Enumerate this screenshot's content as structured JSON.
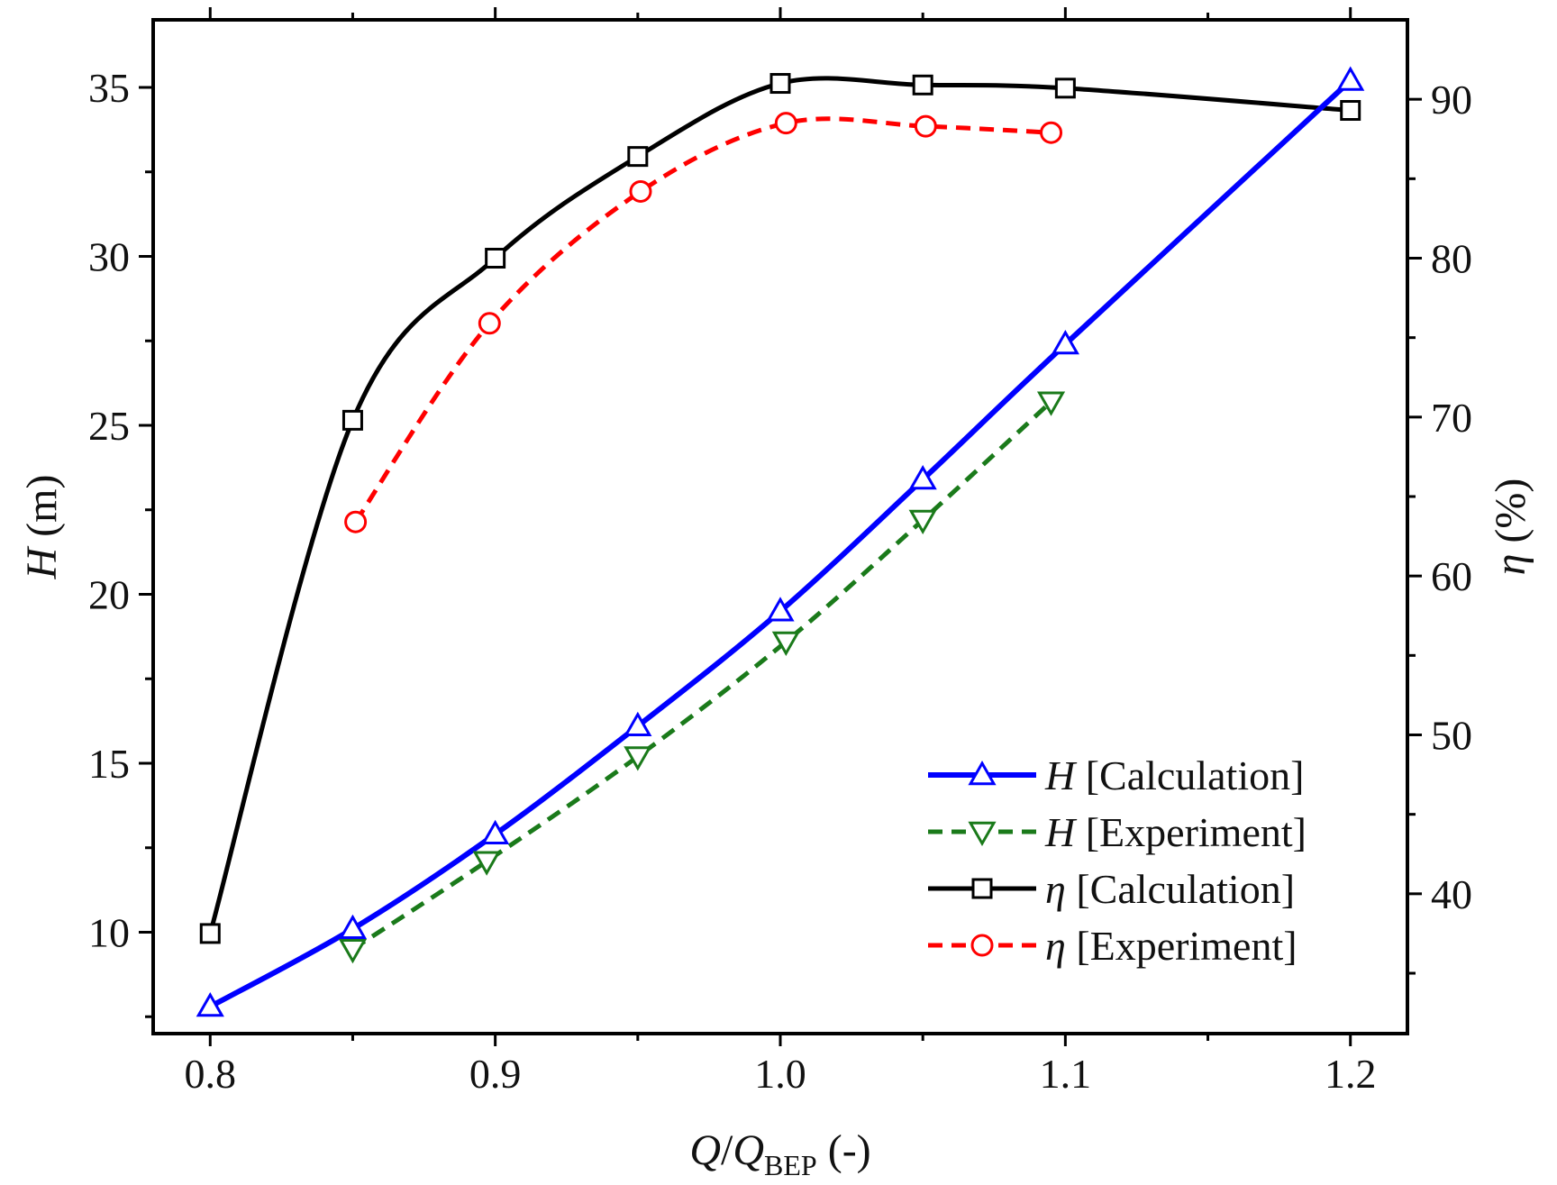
{
  "chart_data": {
    "type": "line",
    "xlabel": {
      "var": "Q",
      "sep": "/",
      "var2": "Q",
      "sub": "BEP",
      "unit": " (-)"
    },
    "ylabel_left": {
      "var": "H",
      "unit": " (m)"
    },
    "ylabel_right": {
      "var": "η",
      "unit": " (%)"
    },
    "xlim": [
      0.78,
      1.22
    ],
    "ylim_left": [
      7.0,
      37.0
    ],
    "ylim_right": [
      31.2,
      95.0
    ],
    "x_ticks": [
      0.8,
      0.9,
      1.0,
      1.1,
      1.2
    ],
    "x_tick_labels": [
      "0.8",
      "0.9",
      "1.0",
      "1.1",
      "1.2"
    ],
    "y_left_ticks": [
      10,
      15,
      20,
      25,
      30,
      35
    ],
    "y_left_tick_labels": [
      "10",
      "15",
      "20",
      "25",
      "30",
      "35"
    ],
    "y_right_ticks": [
      40,
      50,
      60,
      70,
      80,
      90
    ],
    "y_right_tick_labels": [
      "40",
      "50",
      "60",
      "70",
      "80",
      "90"
    ],
    "legend_position": "bottom-right",
    "series": [
      {
        "id": "h-calc",
        "name_var": "H",
        "name_text": " [Calculation]",
        "axis": "left",
        "color": "#0000ff",
        "dash": "none",
        "marker": "triangle-up",
        "x": [
          0.8,
          0.85,
          0.9,
          0.95,
          1.0,
          1.05,
          1.1,
          1.2
        ],
        "values": [
          7.8,
          10.1,
          12.9,
          16.1,
          19.5,
          23.4,
          27.4,
          35.2
        ]
      },
      {
        "id": "h-exp",
        "name_var": "H",
        "name_text": " [Experiment]",
        "axis": "left",
        "color": "#1a7a1a",
        "dash": "dashed",
        "marker": "triangle-down",
        "x": [
          0.85,
          0.897,
          0.95,
          1.002,
          1.05,
          1.095
        ],
        "values": [
          9.5,
          12.1,
          15.2,
          18.6,
          22.2,
          25.7
        ]
      },
      {
        "id": "eta-calc",
        "name_var": "η",
        "name_text": " [Calculation]",
        "axis": "right",
        "color": "#000000",
        "dash": "none",
        "marker": "square",
        "x": [
          0.8,
          0.85,
          0.9,
          0.95,
          1.0,
          1.05,
          1.1,
          1.2
        ],
        "values": [
          37.5,
          69.8,
          80.0,
          86.4,
          91.0,
          90.9,
          90.7,
          89.3
        ]
      },
      {
        "id": "eta-exp",
        "name_var": "η",
        "name_text": " [Experiment]",
        "axis": "right",
        "color": "#ff0000",
        "dash": "dashed",
        "marker": "circle",
        "x": [
          0.851,
          0.898,
          0.951,
          1.002,
          1.051,
          1.095
        ],
        "values": [
          63.4,
          75.9,
          84.2,
          88.5,
          88.3,
          87.9
        ]
      }
    ]
  }
}
